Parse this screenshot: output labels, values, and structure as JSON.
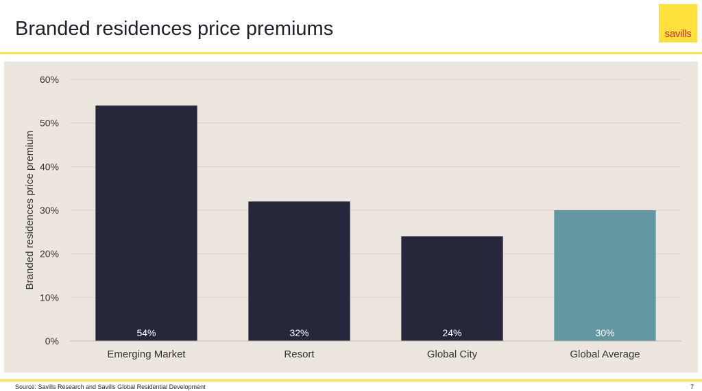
{
  "slide": {
    "title": "Branded residences price premiums",
    "logo_text": "savills",
    "source": "Source: Savills Research and Savills Global Residential Development",
    "page_number": "7"
  },
  "colors": {
    "accent": "#ffe13d",
    "logo_text": "#e3262b",
    "panel_bg": "#ece6df",
    "bar_dark": "#26273b",
    "bar_highlight": "#6398a3"
  },
  "chart_data": {
    "type": "bar",
    "categories": [
      "Emerging Market",
      "Resort",
      "Global City",
      "Global Average"
    ],
    "values": [
      54,
      32,
      24,
      30
    ],
    "data_labels": [
      "54%",
      "32%",
      "24%",
      "30%"
    ],
    "highlight_index": 3,
    "ylabel": "Branded residences price premium",
    "xlabel": "",
    "ylim": [
      0,
      60
    ],
    "yticks": [
      0,
      10,
      20,
      30,
      40,
      50,
      60
    ],
    "ytick_labels": [
      "0%",
      "10%",
      "20%",
      "30%",
      "40%",
      "50%",
      "60%"
    ],
    "grid": true,
    "legend": "none"
  }
}
